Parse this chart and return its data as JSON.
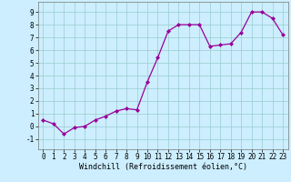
{
  "x": [
    0,
    1,
    2,
    3,
    4,
    5,
    6,
    7,
    8,
    9,
    10,
    11,
    12,
    13,
    14,
    15,
    16,
    17,
    18,
    19,
    20,
    21,
    22,
    23
  ],
  "y": [
    0.5,
    0.2,
    -0.6,
    -0.1,
    0.0,
    0.5,
    0.8,
    1.2,
    1.4,
    1.3,
    3.5,
    5.4,
    7.5,
    8.0,
    8.0,
    8.0,
    6.3,
    6.4,
    6.5,
    7.4,
    9.0,
    9.0,
    8.5,
    7.2
  ],
  "line_color": "#990099",
  "marker": "D",
  "marker_size": 2.0,
  "bg_color": "#cceeff",
  "grid_color": "#99cccc",
  "xlabel": "Windchill (Refroidissement éolien,°C)",
  "xlim": [
    -0.5,
    23.5
  ],
  "ylim": [
    -1.8,
    9.8
  ],
  "yticks": [
    -1,
    0,
    1,
    2,
    3,
    4,
    5,
    6,
    7,
    8,
    9
  ],
  "xticks": [
    0,
    1,
    2,
    3,
    4,
    5,
    6,
    7,
    8,
    9,
    10,
    11,
    12,
    13,
    14,
    15,
    16,
    17,
    18,
    19,
    20,
    21,
    22,
    23
  ],
  "tick_label_fontsize": 5.5,
  "xlabel_fontsize": 6.0,
  "linewidth": 0.9
}
